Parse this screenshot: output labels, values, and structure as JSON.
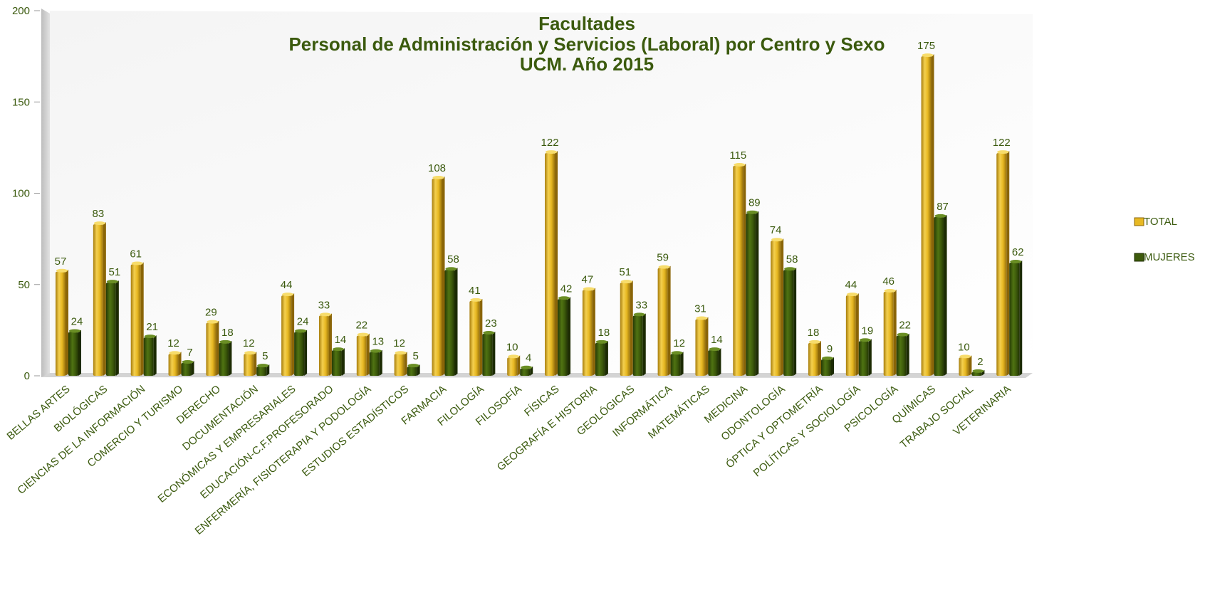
{
  "chart_data": {
    "type": "bar",
    "title": [
      "Facultades",
      "Personal de Administración y Servicios (Laboral) por Centro y Sexo",
      "UCM. Año 2015"
    ],
    "categories": [
      "BELLAS ARTES",
      "BIOLÓGICAS",
      "CIENCIAS DE LA INFORMACIÓN",
      "COMERCIO Y TURISMO",
      "DERECHO",
      "DOCUMENTACIÓN",
      "ECONÓMICAS Y EMPRESARIALES",
      "EDUCACIÓN-C.F.PROFESORADO",
      "ENFERMERÍA, FISIOTERAPIA Y PODOLOGÍA",
      "ESTUDIOS ESTADÍSTICOS",
      "FARMACIA",
      "FILOLOGÍA",
      "FILOSOFÍA",
      "FÍSICAS",
      "GEOGRAFÍA E HISTORIA",
      "GEOLÓGICAS",
      "INFORMÁTICA",
      "MATEMÁTICAS",
      "MEDICINA",
      "ODONTOLOGÍA",
      "ÓPTICA Y OPTOMETRÍA",
      "POLÍTICAS Y SOCIOLOGÍA",
      "PSICOLOGÍA",
      "QUÍMICAS",
      "TRABAJO SOCIAL",
      "VETERINARIA"
    ],
    "series": [
      {
        "name": "TOTAL",
        "color": "#e8b923",
        "values": [
          57,
          83,
          61,
          12,
          29,
          12,
          44,
          33,
          22,
          12,
          108,
          41,
          10,
          122,
          47,
          51,
          59,
          31,
          115,
          74,
          18,
          44,
          46,
          175,
          10,
          122
        ]
      },
      {
        "name": "MUJERES",
        "color": "#3d5a0b",
        "values": [
          24,
          51,
          21,
          7,
          18,
          5,
          24,
          14,
          13,
          5,
          58,
          23,
          4,
          42,
          18,
          33,
          12,
          14,
          89,
          58,
          9,
          19,
          22,
          87,
          2,
          62
        ]
      }
    ],
    "ylim": [
      0,
      200
    ],
    "yticks": [
      0,
      50,
      100,
      150,
      200
    ],
    "legend_position": "right",
    "grid": false,
    "data_labels": true,
    "three_d": true
  }
}
